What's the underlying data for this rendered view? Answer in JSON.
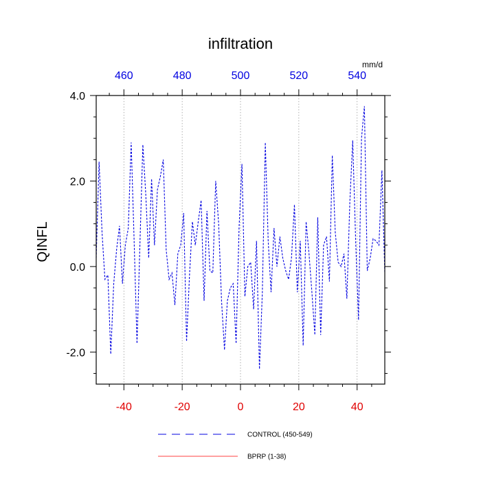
{
  "chart_data": {
    "type": "line",
    "title": "infiltration",
    "units": "mm/d",
    "ylabel": "QINFL",
    "ylim": [
      -2.75,
      4.0
    ],
    "xlim": [
      -49.5,
      49.5
    ],
    "y_ticks": [
      -2.0,
      0.0,
      2.0,
      4.0
    ],
    "y_tick_labels": [
      "-2.0",
      "0.0",
      "2.0",
      "4.0"
    ],
    "bottom_ticks": [
      -40,
      -20,
      0,
      20,
      40
    ],
    "bottom_tick_labels": [
      "-40",
      "-20",
      "0",
      "20",
      "40"
    ],
    "top_ticks": [
      -40,
      -20,
      0,
      20,
      40
    ],
    "top_tick_labels": [
      "460",
      "480",
      "500",
      "520",
      "540"
    ],
    "grid": "vertical dotted lines at bottom ticks",
    "series": [
      {
        "name": "CONTROL (450-549)",
        "color": "#0000e0",
        "style": "dashed",
        "x": [
          -49.5,
          -48.5,
          -47.5,
          -46.5,
          -45.5,
          -44.5,
          -43.5,
          -42.5,
          -41.5,
          -40.5,
          -39.5,
          -38.5,
          -37.5,
          -36.5,
          -35.5,
          -34.5,
          -33.5,
          -32.5,
          -31.5,
          -30.5,
          -29.5,
          -28.5,
          -27.5,
          -26.5,
          -25.5,
          -24.5,
          -23.5,
          -22.5,
          -21.5,
          -20.5,
          -19.5,
          -18.5,
          -17.5,
          -16.5,
          -15.5,
          -14.5,
          -13.5,
          -12.5,
          -11.5,
          -10.5,
          -9.5,
          -8.5,
          -7.5,
          -6.5,
          -5.5,
          -4.5,
          -3.5,
          -2.5,
          -1.5,
          -0.5,
          0.5,
          1.5,
          2.5,
          3.5,
          4.5,
          5.5,
          6.5,
          7.5,
          8.5,
          9.5,
          10.5,
          11.5,
          12.5,
          13.5,
          14.5,
          15.5,
          16.5,
          17.5,
          18.5,
          19.5,
          20.5,
          21.5,
          22.5,
          23.5,
          24.5,
          25.5,
          26.5,
          27.5,
          28.5,
          29.5,
          30.5,
          31.5,
          32.5,
          33.5,
          34.5,
          35.5,
          36.5,
          37.5,
          38.5,
          39.5,
          40.5,
          41.5,
          42.5,
          43.5,
          44.5,
          45.5,
          46.5,
          47.5,
          48.5,
          49.5
        ],
        "values": [
          0.2,
          2.45,
          0.8,
          -0.3,
          -0.2,
          -2.05,
          -0.4,
          0.4,
          0.95,
          -0.4,
          0.5,
          0.9,
          2.9,
          0.6,
          -1.8,
          0.5,
          2.85,
          1.7,
          0.2,
          2.05,
          0.5,
          1.8,
          2.1,
          2.5,
          0.4,
          -0.3,
          -0.15,
          -0.9,
          0.3,
          0.5,
          1.25,
          -1.75,
          -0.2,
          1.05,
          0.5,
          1.05,
          1.55,
          -0.8,
          1.3,
          -0.1,
          -0.15,
          2.0,
          1.0,
          -0.8,
          -1.95,
          -0.8,
          -0.5,
          -0.4,
          -1.8,
          0.9,
          2.4,
          -0.7,
          0.0,
          0.1,
          -1.0,
          0.6,
          -2.4,
          -0.6,
          2.9,
          0.6,
          -0.6,
          0.9,
          0.0,
          0.7,
          0.2,
          -0.1,
          -0.3,
          0.2,
          1.45,
          -0.6,
          0.6,
          -1.85,
          1.05,
          0.3,
          -0.6,
          -1.6,
          1.15,
          -1.6,
          0.5,
          0.7,
          -0.35,
          2.6,
          0.8,
          0.1,
          0.0,
          0.3,
          -0.75,
          1.5,
          2.95,
          0.6,
          -1.25,
          3.0,
          3.75,
          -0.1,
          0.2,
          0.65,
          0.6,
          0.5,
          2.25,
          -0.15
        ]
      },
      {
        "name": "BPRP (1-38)",
        "color": "#ff4040",
        "style": "solid",
        "x": [],
        "values": []
      }
    ]
  }
}
